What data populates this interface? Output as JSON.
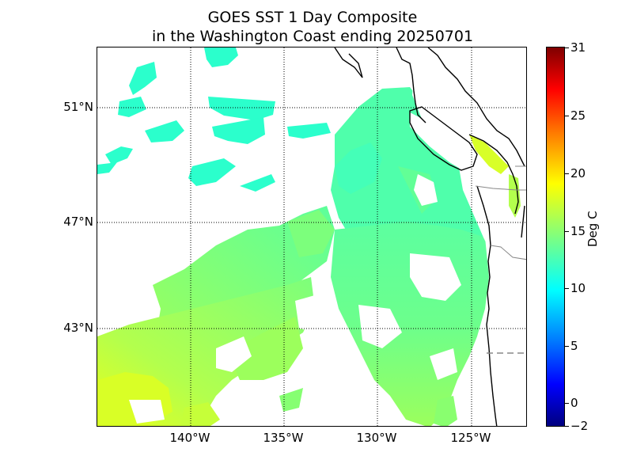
{
  "title": {
    "line1": "GOES SST 1 Day Composite",
    "line2": "in the Washington Coast ending 20250701"
  },
  "axes": {
    "lat_labels": [
      "51°N",
      "47°N",
      "43°N"
    ],
    "lon_labels": [
      "140°W",
      "135°W",
      "130°W",
      "125°W"
    ]
  },
  "colorbar": {
    "label": "Deg C",
    "ticks": [
      "31",
      "25",
      "20",
      "15",
      "10",
      "5",
      "0",
      "−2"
    ],
    "vmin": -2,
    "vmax": 31,
    "colormap": "jet"
  },
  "map": {
    "lat_range": [
      39.6,
      53.3
    ],
    "lon_range": [
      145.3,
      122.2
    ],
    "sst_range_shown_approx": [
      12,
      21
    ],
    "ocean_colors": {
      "cool": "#1fffcf",
      "mid": "#5cff9c",
      "warm": "#b3ff4d",
      "warmest": "#e8ff1a"
    },
    "land_color": "#ffffff",
    "coastline_color": "#000000",
    "grid_style": "dotted"
  }
}
